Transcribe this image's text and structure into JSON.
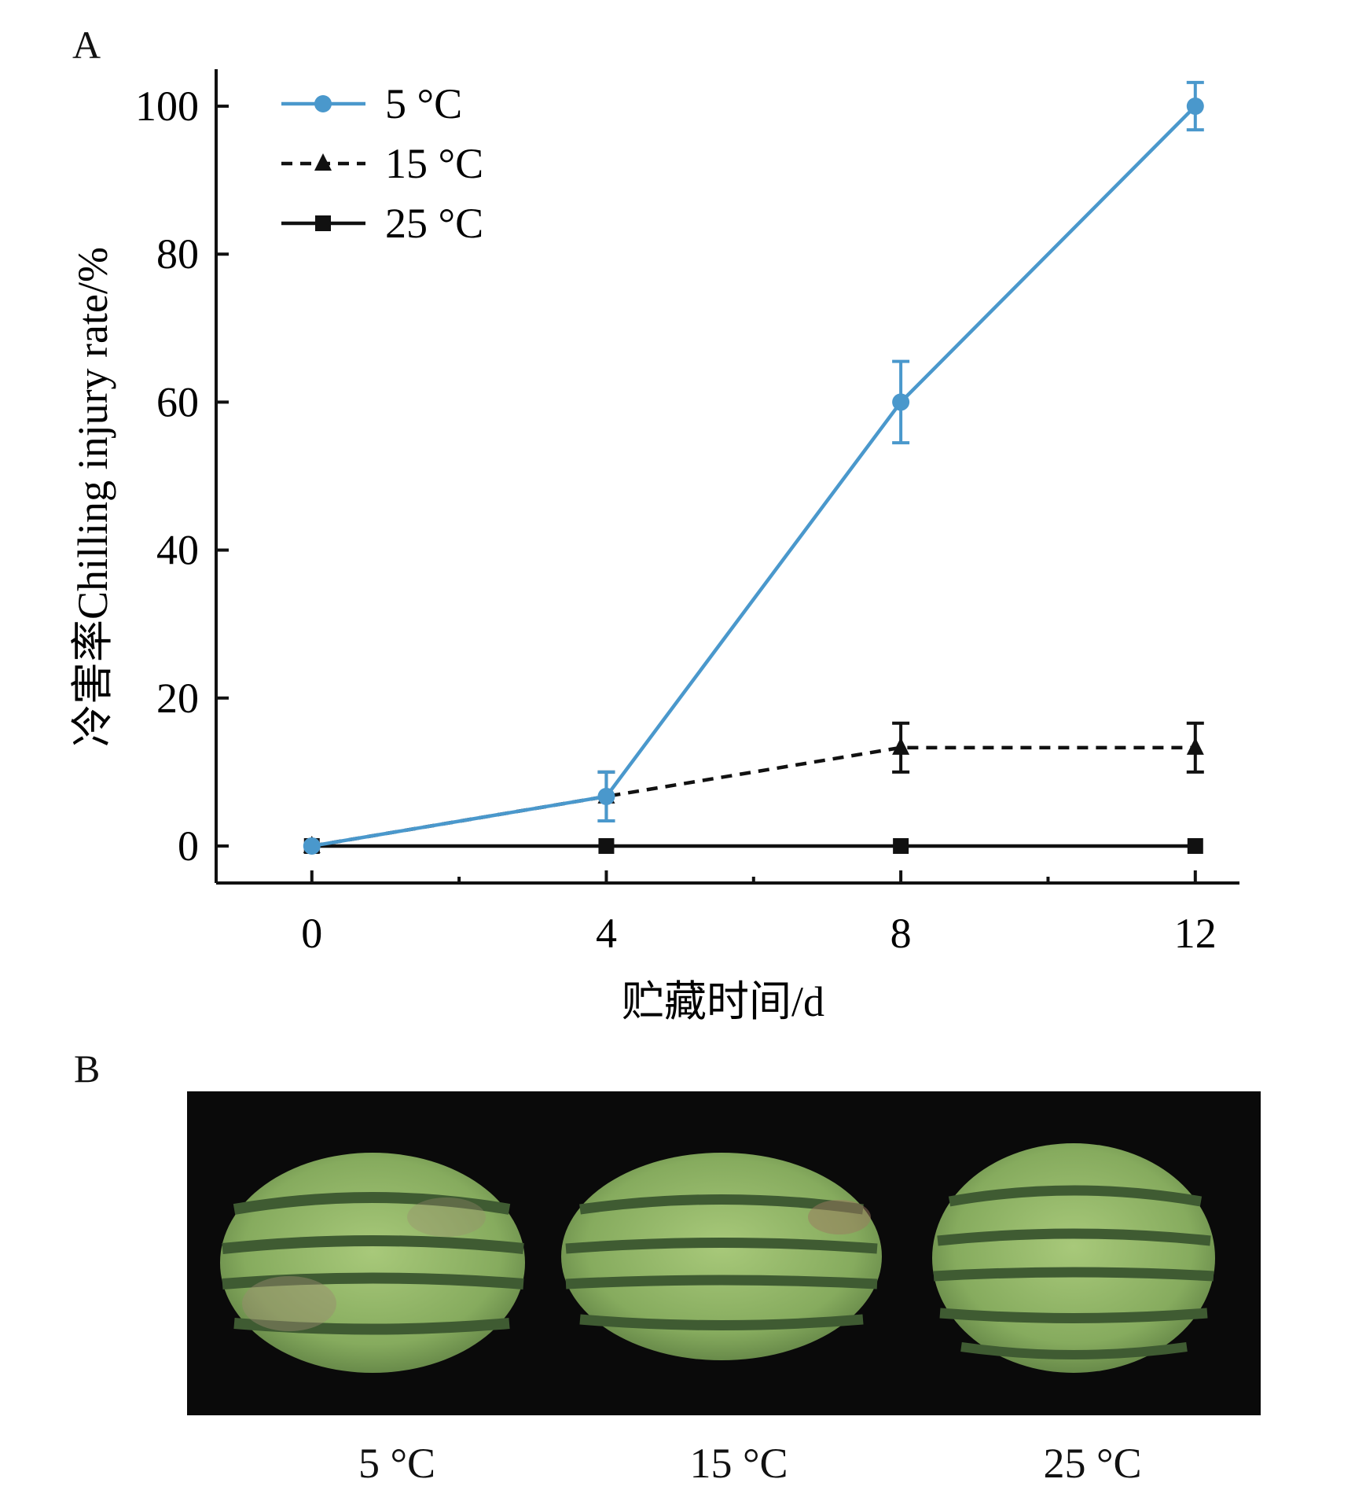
{
  "panels": {
    "a_label": "A",
    "b_label": "B"
  },
  "chart_data": {
    "type": "line",
    "title": "",
    "xlabel": "贮藏时间/d",
    "ylabel": "冷害率Chilling injury rate/%",
    "x_ticks": [
      "0",
      "4",
      "8",
      "12"
    ],
    "y_ticks": [
      "0",
      "20",
      "40",
      "60",
      "80",
      "100"
    ],
    "xlim": [
      -1.3,
      12.6
    ],
    "ylim": [
      -5,
      105
    ],
    "legend_position": "top-left",
    "series": [
      {
        "name": "5 °C",
        "marker": "circle",
        "line": "solid",
        "color": "#4a98cc",
        "x": [
          0,
          4,
          8,
          12
        ],
        "y": [
          0,
          6.7,
          60,
          100
        ],
        "err": [
          0,
          3.3,
          5.5,
          3.2
        ]
      },
      {
        "name": "15 °C",
        "marker": "triangle",
        "line": "dashed",
        "color": "#111111",
        "x": [
          0,
          4,
          8,
          12
        ],
        "y": [
          0,
          6.7,
          13.3,
          13.3
        ],
        "err": [
          0,
          3.3,
          3.3,
          3.3
        ]
      },
      {
        "name": "25 °C",
        "marker": "square",
        "line": "solid",
        "color": "#111111",
        "x": [
          0,
          4,
          8,
          12
        ],
        "y": [
          0,
          0,
          0,
          0
        ],
        "err": [
          0,
          0,
          0,
          0
        ]
      }
    ]
  },
  "photo": {
    "captions": [
      "5 °C",
      "15 °C",
      "25 °C"
    ]
  }
}
